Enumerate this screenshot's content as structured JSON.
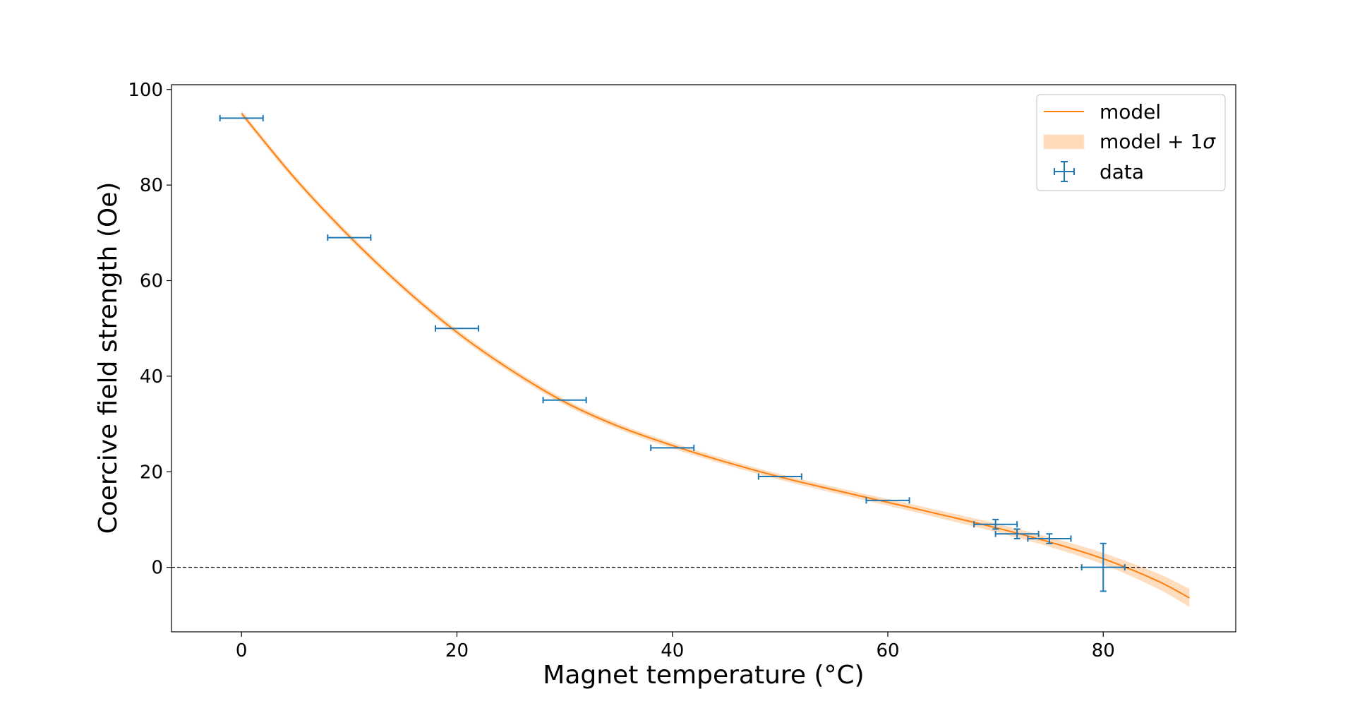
{
  "chart_data": {
    "type": "line",
    "xlabel": "Magnet temperature (°C)",
    "ylabel": "Coercive field strength (Oe)",
    "xlim": [
      -6.5,
      92.3
    ],
    "ylim": [
      -13.5,
      101.0
    ],
    "x_ticks": [
      0,
      20,
      40,
      60,
      80
    ],
    "y_ticks": [
      0,
      20,
      40,
      60,
      80,
      100
    ],
    "grid": false,
    "legend_position": "top-right",
    "reference_line": {
      "y": 0,
      "style": "dashed",
      "color": "#000000"
    },
    "series": [
      {
        "name": "model",
        "kind": "line",
        "color": "#ff7f0e",
        "x": [
          0,
          5,
          10,
          15,
          20,
          25,
          30,
          35,
          40,
          45,
          50,
          55,
          60,
          65,
          70,
          75,
          80,
          85,
          88
        ],
        "y": [
          95.0,
          81.3,
          69.3,
          58.6,
          49.2,
          41.3,
          34.6,
          29.5,
          25.5,
          22.0,
          18.9,
          16.2,
          13.6,
          11.0,
          8.3,
          5.3,
          1.8,
          -2.8,
          -6.4
        ]
      },
      {
        "name": "model + 1σ",
        "kind": "band",
        "color": "#ffd9b8",
        "x": [
          0,
          10,
          20,
          30,
          40,
          50,
          60,
          70,
          75,
          80,
          85,
          88
        ],
        "half_width": [
          0.6,
          0.6,
          0.6,
          0.6,
          0.6,
          0.6,
          0.7,
          0.9,
          1.0,
          1.2,
          1.6,
          1.9
        ]
      },
      {
        "name": "data",
        "kind": "errorbar",
        "color": "#1f77b4",
        "points": [
          {
            "x": 0,
            "y": 94,
            "xerr": 2,
            "yerr": 0
          },
          {
            "x": 10,
            "y": 69,
            "xerr": 2,
            "yerr": 0
          },
          {
            "x": 20,
            "y": 50,
            "xerr": 2,
            "yerr": 0
          },
          {
            "x": 30,
            "y": 35,
            "xerr": 2,
            "yerr": 0
          },
          {
            "x": 40,
            "y": 25,
            "xerr": 2,
            "yerr": 0
          },
          {
            "x": 50,
            "y": 19,
            "xerr": 2,
            "yerr": 0
          },
          {
            "x": 60,
            "y": 14,
            "xerr": 2,
            "yerr": 0
          },
          {
            "x": 70,
            "y": 9,
            "xerr": 2,
            "yerr": 1
          },
          {
            "x": 72,
            "y": 7,
            "xerr": 2,
            "yerr": 1
          },
          {
            "x": 75,
            "y": 6,
            "xerr": 2,
            "yerr": 1
          },
          {
            "x": 80,
            "y": 0,
            "xerr": 2,
            "yerr": 5
          }
        ]
      }
    ],
    "legend": [
      {
        "label": "model",
        "marker": "line"
      },
      {
        "label": "model + 1",
        "sigma": "σ",
        "marker": "band"
      },
      {
        "label": "data",
        "marker": "errorbar"
      }
    ]
  }
}
